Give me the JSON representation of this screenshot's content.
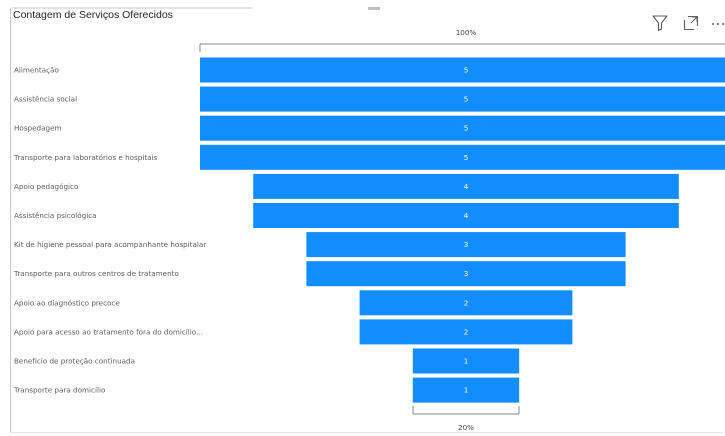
{
  "header": {
    "title": "Contagem de Serviços Oferecidos"
  },
  "toolbar": {
    "icons": [
      "filter-icon",
      "focus-mode-icon",
      "more-options-icon"
    ]
  },
  "chart_data": {
    "type": "funnel",
    "title": "Contagem de Serviços Oferecidos",
    "categories": [
      "Alimentação",
      "Assistência social",
      "Hospedagem",
      "Transporte para laboratórios e hospitais",
      "Apoio pedagógico",
      "Assistência psicológica",
      "Kit de higiene pessoal para acompanhante hospitalar",
      "Transporte para outros centros de tratamento",
      "Apoio ao diagnóstico precoce",
      "Apoio para acesso ao tratamento fora do domicílio...",
      "Benefício de proteção continuada",
      "Transporte para domicílio"
    ],
    "values": [
      5,
      5,
      5,
      5,
      4,
      4,
      3,
      3,
      2,
      2,
      1,
      1
    ],
    "top_label": "100%",
    "bottom_label": "20%",
    "bar_color": "#118DFF"
  }
}
